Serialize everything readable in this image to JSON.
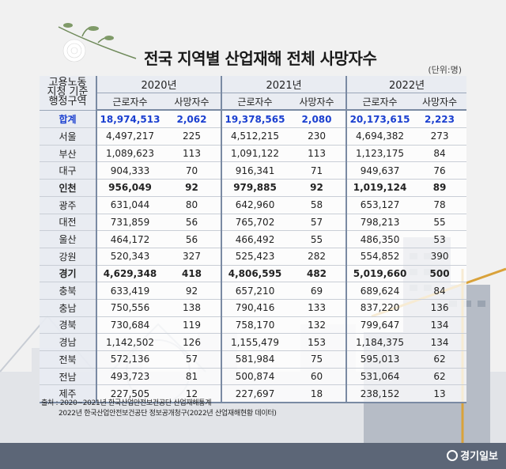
{
  "title": "전국 지역별 산업재해 전체 사망자수",
  "unit_note": "(단위:명)",
  "corner_header": [
    "고용노동",
    "지청 기준",
    "행정구역"
  ],
  "years": [
    "2020년",
    "2021년",
    "2022년"
  ],
  "subheaders": [
    "근로자수",
    "사망자수",
    "근로자수",
    "사망자수",
    "근로자수",
    "사망자수"
  ],
  "rows": [
    {
      "region": "합계",
      "w2020": "18,974,513",
      "d2020": "2,062",
      "w2021": "19,378,565",
      "d2021": "2,080",
      "w2022": "20,173,615",
      "d2022": "2,223"
    },
    {
      "region": "서울",
      "w2020": "4,497,217",
      "d2020": "225",
      "w2021": "4,512,215",
      "d2021": "230",
      "w2022": "4,694,382",
      "d2022": "273"
    },
    {
      "region": "부산",
      "w2020": "1,089,623",
      "d2020": "113",
      "w2021": "1,091,122",
      "d2021": "113",
      "w2022": "1,123,175",
      "d2022": "84"
    },
    {
      "region": "대구",
      "w2020": "904,333",
      "d2020": "70",
      "w2021": "916,341",
      "d2021": "71",
      "w2022": "949,637",
      "d2022": "76"
    },
    {
      "region": "인천",
      "w2020": "956,049",
      "d2020": "92",
      "w2021": "979,885",
      "d2021": "92",
      "w2022": "1,019,124",
      "d2022": "89"
    },
    {
      "region": "광주",
      "w2020": "631,044",
      "d2020": "80",
      "w2021": "642,960",
      "d2021": "58",
      "w2022": "653,127",
      "d2022": "78"
    },
    {
      "region": "대전",
      "w2020": "731,859",
      "d2020": "56",
      "w2021": "765,702",
      "d2021": "57",
      "w2022": "798,213",
      "d2022": "55"
    },
    {
      "region": "울산",
      "w2020": "464,172",
      "d2020": "56",
      "w2021": "466,492",
      "d2021": "55",
      "w2022": "486,350",
      "d2022": "53"
    },
    {
      "region": "강원",
      "w2020": "520,343",
      "d2020": "327",
      "w2021": "525,423",
      "d2021": "282",
      "w2022": "554,852",
      "d2022": "390"
    },
    {
      "region": "경기",
      "w2020": "4,629,348",
      "d2020": "418",
      "w2021": "4,806,595",
      "d2021": "482",
      "w2022": "5,019,660",
      "d2022": "500"
    },
    {
      "region": "충북",
      "w2020": "633,419",
      "d2020": "92",
      "w2021": "657,210",
      "d2021": "69",
      "w2022": "689,624",
      "d2022": "84"
    },
    {
      "region": "충남",
      "w2020": "750,556",
      "d2020": "138",
      "w2021": "790,416",
      "d2021": "133",
      "w2022": "837,220",
      "d2022": "136"
    },
    {
      "region": "경북",
      "w2020": "730,684",
      "d2020": "119",
      "w2021": "758,170",
      "d2021": "132",
      "w2022": "799,647",
      "d2022": "134"
    },
    {
      "region": "경남",
      "w2020": "1,142,502",
      "d2020": "126",
      "w2021": "1,155,479",
      "d2021": "153",
      "w2022": "1,184,375",
      "d2022": "134"
    },
    {
      "region": "전북",
      "w2020": "572,136",
      "d2020": "57",
      "w2021": "581,984",
      "d2021": "75",
      "w2022": "595,013",
      "d2022": "62"
    },
    {
      "region": "전남",
      "w2020": "493,723",
      "d2020": "81",
      "w2021": "500,874",
      "d2021": "60",
      "w2022": "531,064",
      "d2022": "62"
    },
    {
      "region": "제주",
      "w2020": "227,505",
      "d2020": "12",
      "w2021": "227,697",
      "d2021": "18",
      "w2022": "238,152",
      "d2022": "13"
    }
  ],
  "source": {
    "line1": "출처 : 2020~2021년 한국산업안전보건공단 산업재해통계",
    "line2": "2022년 한국산업안전보건공단 정보공개청구(2022년 산업재해현황 데이터)"
  },
  "logo_text": "경기일보",
  "colors": {
    "total_row": "#1a3fd0",
    "rule": "#7a8aa3"
  },
  "icons": [
    "chrysanthemum-icon",
    "logo-mark-icon"
  ]
}
